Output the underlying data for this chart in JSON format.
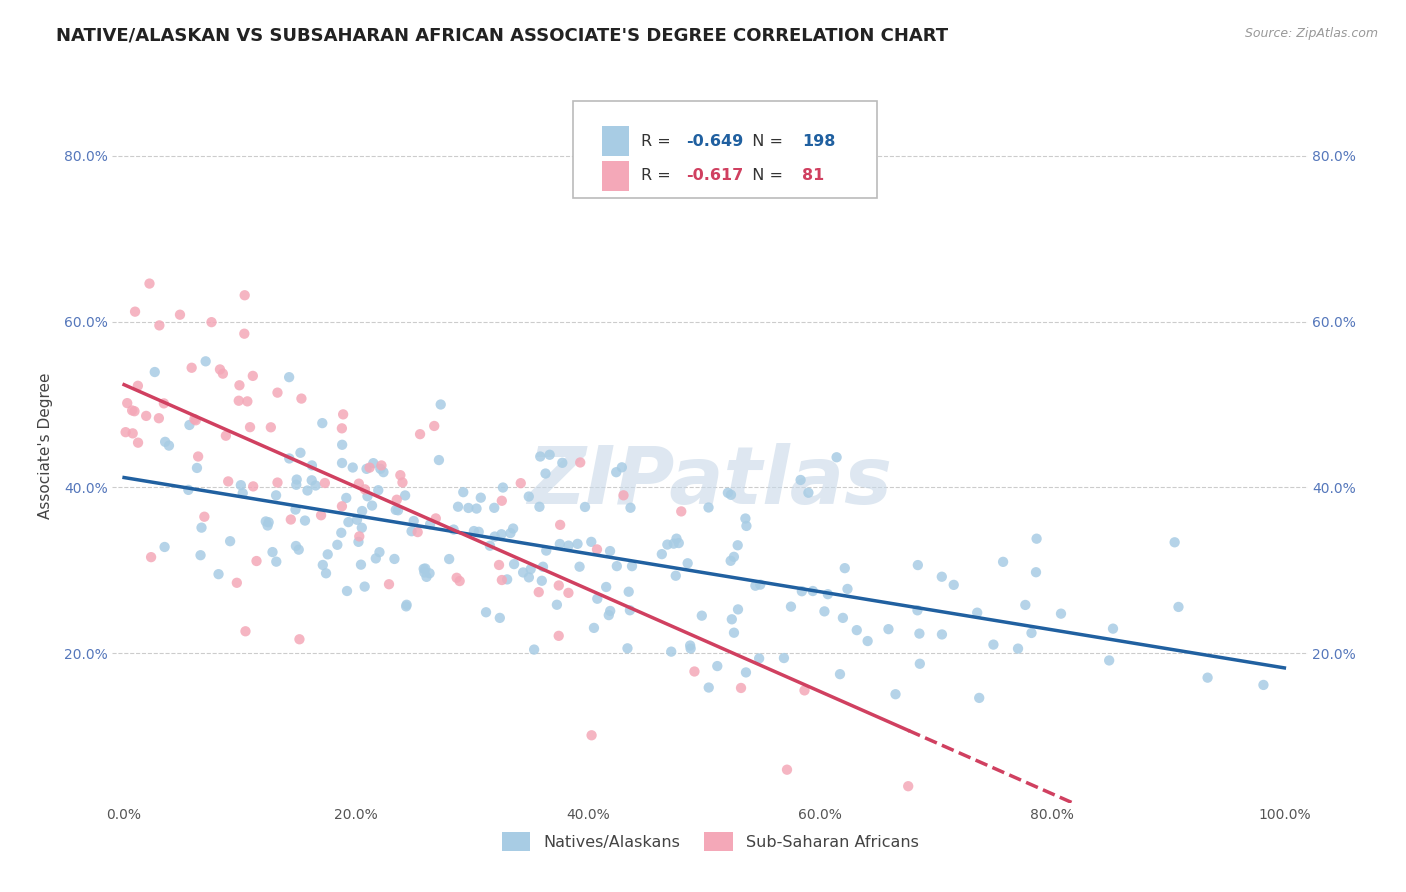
{
  "title": "NATIVE/ALASKAN VS SUBSAHARAN AFRICAN ASSOCIATE'S DEGREE CORRELATION CHART",
  "source": "Source: ZipAtlas.com",
  "ylabel": "Associate's Degree",
  "x_tick_labels": [
    "0.0%",
    "20.0%",
    "40.0%",
    "60.0%",
    "80.0%",
    "100.0%"
  ],
  "x_tick_values": [
    0,
    0.2,
    0.4,
    0.6,
    0.8,
    1.0
  ],
  "y_tick_labels": [
    "20.0%",
    "40.0%",
    "60.0%",
    "80.0%"
  ],
  "y_tick_values": [
    0.2,
    0.4,
    0.6,
    0.8
  ],
  "ylim": [
    0.02,
    0.88
  ],
  "xlim": [
    -0.01,
    1.02
  ],
  "blue_R": -0.649,
  "blue_N": 198,
  "pink_R": -0.617,
  "pink_N": 81,
  "blue_color": "#a8cce4",
  "pink_color": "#f4a8b8",
  "blue_line_color": "#2060a0",
  "pink_line_color": "#d04060",
  "legend_label_blue": "Natives/Alaskans",
  "legend_label_pink": "Sub-Saharan Africans",
  "watermark": "ZIPatlas",
  "background_color": "#ffffff",
  "grid_color": "#cccccc",
  "title_fontsize": 13,
  "axis_label_fontsize": 11,
  "tick_fontsize": 10,
  "blue_seed": 42,
  "pink_seed": 7,
  "blue_intercept": 0.395,
  "blue_slope": -0.2,
  "pink_intercept": 0.52,
  "pink_slope": -0.6
}
